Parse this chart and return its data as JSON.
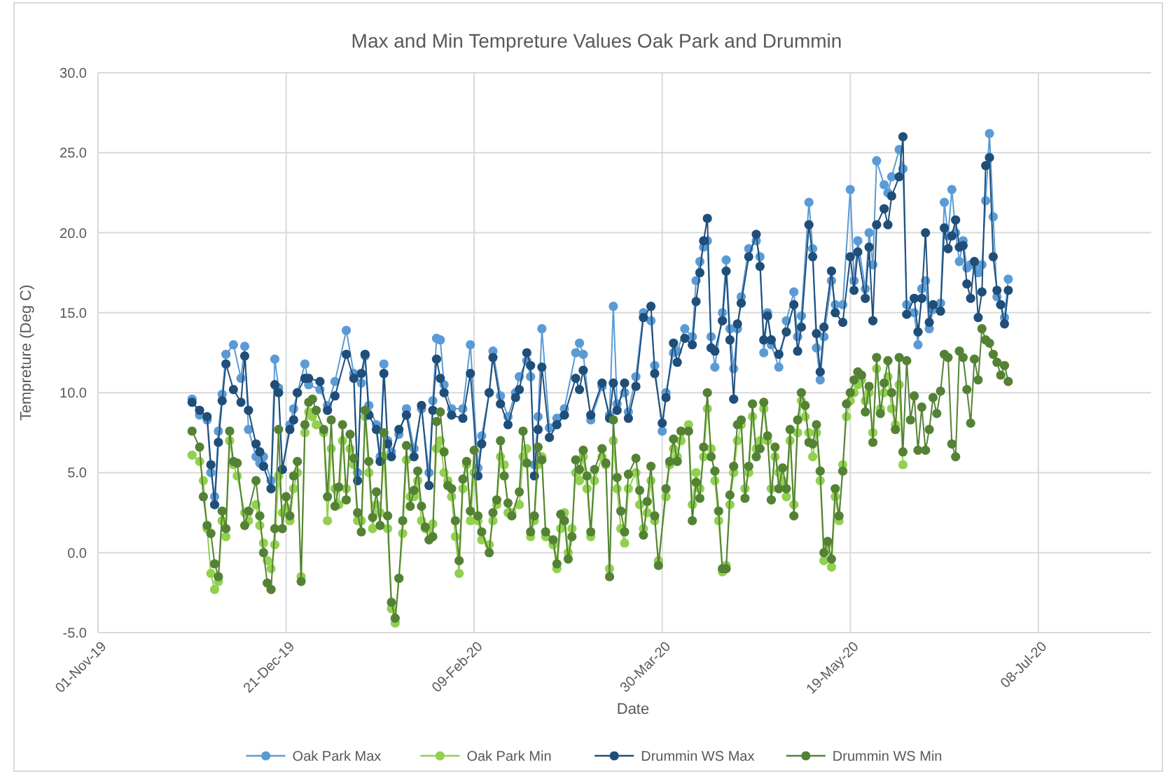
{
  "chart_data": {
    "type": "line",
    "title": "Max and Min Tempreture Values Oak Park and Drummin",
    "xlabel": "Date",
    "ylabel": "Tempreture (Deg C)",
    "xlim": [
      "2019-11-01",
      "2020-08-07"
    ],
    "xticks": [
      {
        "value": "2019-11-01",
        "label": "01-Nov-19"
      },
      {
        "value": "2019-12-21",
        "label": "21-Dec-19"
      },
      {
        "value": "2020-02-09",
        "label": "09-Feb-20"
      },
      {
        "value": "2020-03-30",
        "label": "30-Mar-20"
      },
      {
        "value": "2020-05-19",
        "label": "19-May-20"
      },
      {
        "value": "2020-07-08",
        "label": "08-Jul-20"
      }
    ],
    "ylim": [
      -5,
      30
    ],
    "yticks": [
      {
        "value": -5,
        "label": "-5.0"
      },
      {
        "value": 0,
        "label": "0.0"
      },
      {
        "value": 5,
        "label": "5.0"
      },
      {
        "value": 10,
        "label": "10.0"
      },
      {
        "value": 15,
        "label": "15.0"
      },
      {
        "value": 20,
        "label": "20.0"
      },
      {
        "value": 25,
        "label": "25.0"
      },
      {
        "value": 30,
        "label": "30.0"
      }
    ],
    "grid": true,
    "legend": "bottom",
    "marker": "circle",
    "line_style": "solid",
    "series": [
      {
        "name": "Oak Park Max",
        "color": "#5b9bd5",
        "x": [
          "2019-11-26",
          "2019-11-28",
          "2019-11-30",
          "2019-12-01",
          "2019-12-02",
          "2019-12-03",
          "2019-12-04",
          "2019-12-05",
          "2019-12-07",
          "2019-12-09",
          "2019-12-10",
          "2019-12-11",
          "2019-12-13",
          "2019-12-14",
          "2019-12-15",
          "2019-12-17",
          "2019-12-18",
          "2019-12-19",
          "2019-12-20",
          "2019-12-22",
          "2019-12-23",
          "2019-12-24",
          "2019-12-26",
          "2019-12-27",
          "2019-12-30",
          "2020-01-01",
          "2020-01-03",
          "2020-01-06",
          "2020-01-08",
          "2020-01-09",
          "2020-01-10",
          "2020-01-11",
          "2020-01-12",
          "2020-01-14",
          "2020-01-15",
          "2020-01-16",
          "2020-01-17",
          "2020-01-18",
          "2020-01-20",
          "2020-01-22",
          "2020-01-24",
          "2020-01-26",
          "2020-01-28",
          "2020-01-29",
          "2020-01-30",
          "2020-01-31",
          "2020-02-01",
          "2020-02-03",
          "2020-02-06",
          "2020-02-08",
          "2020-02-10",
          "2020-02-11",
          "2020-02-13",
          "2020-02-14",
          "2020-02-16",
          "2020-02-18",
          "2020-02-20",
          "2020-02-21",
          "2020-02-23",
          "2020-02-24",
          "2020-02-25",
          "2020-02-26",
          "2020-02-27",
          "2020-02-29",
          "2020-03-02",
          "2020-03-04",
          "2020-03-07",
          "2020-03-08",
          "2020-03-09",
          "2020-03-11",
          "2020-03-14",
          "2020-03-16",
          "2020-03-17",
          "2020-03-18",
          "2020-03-20",
          "2020-03-21",
          "2020-03-23",
          "2020-03-25",
          "2020-03-27",
          "2020-03-28",
          "2020-03-30",
          "2020-03-31",
          "2020-04-02",
          "2020-04-03",
          "2020-04-05",
          "2020-04-07",
          "2020-04-08",
          "2020-04-09",
          "2020-04-10",
          "2020-04-11",
          "2020-04-12",
          "2020-04-13",
          "2020-04-15",
          "2020-04-16",
          "2020-04-17",
          "2020-04-18",
          "2020-04-19",
          "2020-04-20",
          "2020-04-22",
          "2020-04-24",
          "2020-04-25",
          "2020-04-26",
          "2020-04-27",
          "2020-04-28",
          "2020-04-30",
          "2020-05-02",
          "2020-05-04",
          "2020-05-05",
          "2020-05-06",
          "2020-05-08",
          "2020-05-09",
          "2020-05-10",
          "2020-05-11",
          "2020-05-12",
          "2020-05-14",
          "2020-05-15",
          "2020-05-17",
          "2020-05-19",
          "2020-05-20",
          "2020-05-21",
          "2020-05-23",
          "2020-05-24",
          "2020-05-25",
          "2020-05-26",
          "2020-05-28",
          "2020-05-29",
          "2020-05-30",
          "2020-06-01",
          "2020-06-02",
          "2020-06-03",
          "2020-06-05",
          "2020-06-06",
          "2020-06-07",
          "2020-06-08",
          "2020-06-09",
          "2020-06-10",
          "2020-06-12",
          "2020-06-13",
          "2020-06-14",
          "2020-06-15",
          "2020-06-16",
          "2020-06-17",
          "2020-06-18",
          "2020-06-19",
          "2020-06-20",
          "2020-06-21",
          "2020-06-22",
          "2020-06-23",
          "2020-06-24",
          "2020-06-25",
          "2020-06-26",
          "2020-06-27",
          "2020-06-28",
          "2020-06-29",
          "2020-06-30"
        ],
        "values": [
          9.6,
          8.6,
          8.3,
          5.0,
          3.5,
          7.6,
          9.9,
          12.4,
          13.0,
          10.9,
          12.9,
          7.7,
          6.0,
          5.6,
          6.0,
          4.5,
          12.1,
          10.3,
          5.2,
          8.0,
          9.0,
          10.0,
          11.8,
          10.5,
          10.2,
          9.2,
          10.7,
          13.9,
          11.2,
          5.0,
          10.6,
          12.3,
          9.2,
          8.0,
          6.0,
          11.8,
          7.0,
          6.3,
          7.4,
          9.0,
          6.5,
          9.0,
          5.0,
          9.5,
          13.4,
          13.3,
          10.5,
          9.0,
          9.0,
          13.0,
          5.3,
          7.3,
          10.0,
          12.6,
          9.8,
          8.5,
          10.0,
          11.0,
          12.0,
          11.0,
          5.5,
          8.5,
          14.0,
          7.8,
          8.4,
          9.0,
          12.5,
          13.1,
          12.4,
          8.3,
          10.4,
          8.6,
          15.4,
          9.3,
          10.0,
          8.8,
          11.0,
          15.0,
          14.5,
          11.7,
          7.6,
          10.0,
          12.5,
          12.6,
          14.0,
          13.5,
          17.0,
          18.2,
          19.1,
          19.5,
          13.5,
          11.6,
          15.0,
          18.3,
          14.0,
          11.5,
          14.0,
          16.0,
          19.0,
          19.5,
          18.5,
          12.5,
          15.0,
          13.0,
          11.6,
          14.5,
          16.3,
          13.5,
          14.8,
          21.9,
          19.0,
          12.8,
          10.8,
          13.5,
          17.0,
          15.5,
          15.5,
          22.7,
          17.0,
          19.5,
          16.5,
          20.0,
          18.0,
          24.5,
          23.0,
          22.5,
          23.5,
          25.2,
          24.0,
          15.5,
          15.0,
          13.0,
          16.5,
          17.0,
          14.0,
          15.2,
          15.6,
          21.9,
          19.8,
          22.7,
          20.0,
          18.2,
          19.5,
          17.8,
          18.0,
          18.0,
          17.5,
          18.0,
          22.0,
          26.2,
          21.0,
          16.0,
          15.5,
          14.7,
          17.1
        ]
      },
      {
        "name": "Oak Park Min",
        "color": "#92d050",
        "x": [
          "2019-11-26",
          "2019-11-28",
          "2019-11-29",
          "2019-11-30",
          "2019-12-01",
          "2019-12-02",
          "2019-12-03",
          "2019-12-04",
          "2019-12-05",
          "2019-12-06",
          "2019-12-07",
          "2019-12-08",
          "2019-12-10",
          "2019-12-11",
          "2019-12-13",
          "2019-12-14",
          "2019-12-15",
          "2019-12-16",
          "2019-12-17",
          "2019-12-18",
          "2019-12-19",
          "2019-12-20",
          "2019-12-21",
          "2019-12-22",
          "2019-12-23",
          "2019-12-24",
          "2019-12-25",
          "2019-12-26",
          "2019-12-27",
          "2019-12-28",
          "2019-12-29",
          "2019-12-31",
          "2020-01-01",
          "2020-01-02",
          "2020-01-03",
          "2020-01-04",
          "2020-01-05",
          "2020-01-06",
          "2020-01-07",
          "2020-01-08",
          "2020-01-09",
          "2020-01-10",
          "2020-01-11",
          "2020-01-12",
          "2020-01-13",
          "2020-01-14",
          "2020-01-15",
          "2020-01-16",
          "2020-01-17",
          "2020-01-18",
          "2020-01-19",
          "2020-01-20",
          "2020-01-21",
          "2020-01-22",
          "2020-01-23",
          "2020-01-24",
          "2020-01-25",
          "2020-01-26",
          "2020-01-27",
          "2020-01-28",
          "2020-01-29",
          "2020-01-30",
          "2020-01-31",
          "2020-02-01",
          "2020-02-02",
          "2020-02-03",
          "2020-02-04",
          "2020-02-05",
          "2020-02-06",
          "2020-02-07",
          "2020-02-08",
          "2020-02-09",
          "2020-02-10",
          "2020-02-11",
          "2020-02-13",
          "2020-02-14",
          "2020-02-15",
          "2020-02-16",
          "2020-02-17",
          "2020-02-18",
          "2020-02-19",
          "2020-02-21",
          "2020-02-22",
          "2020-02-23",
          "2020-02-24",
          "2020-02-25",
          "2020-02-26",
          "2020-02-27",
          "2020-02-28",
          "2020-03-01",
          "2020-03-02",
          "2020-03-03",
          "2020-03-04",
          "2020-03-05",
          "2020-03-06",
          "2020-03-07",
          "2020-03-08",
          "2020-03-09",
          "2020-03-10",
          "2020-03-11",
          "2020-03-12",
          "2020-03-14",
          "2020-03-15",
          "2020-03-16",
          "2020-03-17",
          "2020-03-18",
          "2020-03-19",
          "2020-03-20",
          "2020-03-21",
          "2020-03-23",
          "2020-03-24",
          "2020-03-25",
          "2020-03-26",
          "2020-03-27",
          "2020-03-28",
          "2020-03-29",
          "2020-03-31",
          "2020-04-01",
          "2020-04-02",
          "2020-04-03",
          "2020-04-04",
          "2020-04-06",
          "2020-04-07",
          "2020-04-08",
          "2020-04-09",
          "2020-04-10",
          "2020-04-11",
          "2020-04-12",
          "2020-04-13",
          "2020-04-14",
          "2020-04-15",
          "2020-04-16",
          "2020-04-17",
          "2020-04-18",
          "2020-04-19",
          "2020-04-20",
          "2020-04-21",
          "2020-04-22",
          "2020-04-23",
          "2020-04-24",
          "2020-04-25",
          "2020-04-26",
          "2020-04-27",
          "2020-04-28",
          "2020-04-29",
          "2020-04-30",
          "2020-05-01",
          "2020-05-02",
          "2020-05-03",
          "2020-05-04",
          "2020-05-05",
          "2020-05-06",
          "2020-05-07",
          "2020-05-08",
          "2020-05-09",
          "2020-05-10",
          "2020-05-11",
          "2020-05-12",
          "2020-05-13",
          "2020-05-14",
          "2020-05-15",
          "2020-05-16",
          "2020-05-17",
          "2020-05-18",
          "2020-05-19",
          "2020-05-20",
          "2020-05-21",
          "2020-05-22",
          "2020-05-23",
          "2020-05-24",
          "2020-05-25",
          "2020-05-26",
          "2020-05-27",
          "2020-05-28",
          "2020-05-29",
          "2020-05-30",
          "2020-05-31",
          "2020-06-01",
          "2020-06-02"
        ],
        "values": [
          6.1,
          5.7,
          4.5,
          1.5,
          -1.3,
          -2.3,
          -1.8,
          2.0,
          1.0,
          7.0,
          5.5,
          4.8,
          2.5,
          2.0,
          3.0,
          1.7,
          0.6,
          -0.5,
          -1.0,
          0.5,
          4.8,
          2.5,
          2.8,
          2.0,
          4.0,
          5.0,
          -1.5,
          7.5,
          8.8,
          8.5,
          8.0,
          7.5,
          2.0,
          6.5,
          4.0,
          3.0,
          7.0,
          4.0,
          6.5,
          5.5,
          2.0,
          2.0,
          8.5,
          5.0,
          1.5,
          3.0,
          2.5,
          6.0,
          1.5,
          -3.5,
          -4.4,
          -1.6,
          1.2,
          5.8,
          3.5,
          3.5,
          4.5,
          2.0,
          1.5,
          1.5,
          1.8,
          6.5,
          7.0,
          5.0,
          4.5,
          3.5,
          1.0,
          -1.3,
          4.0,
          5.5,
          2.0,
          5.0,
          2.0,
          0.8,
          0.5,
          2.0,
          3.0,
          6.0,
          5.5,
          2.5,
          2.5,
          3.0,
          6.0,
          6.5,
          1.0,
          2.0,
          5.5,
          6.0,
          1.0,
          0.5,
          -1.0,
          1.5,
          2.5,
          0.0,
          1.5,
          5.0,
          4.5,
          6.0,
          4.0,
          1.0,
          4.5,
          6.0,
          5.5,
          -1.0,
          7.0,
          4.0,
          1.5,
          0.6,
          4.0,
          5.0,
          3.0,
          1.5,
          2.5,
          4.5,
          2.0,
          -0.5,
          3.5,
          5.5,
          6.5,
          6.0,
          7.0,
          8.0,
          3.0,
          5.0,
          4.0,
          6.0,
          9.0,
          6.5,
          4.5,
          2.0,
          -1.2,
          -0.8,
          3.0,
          5.0,
          7.0,
          8.0,
          4.0,
          5.0,
          8.5,
          6.5,
          7.0,
          9.0,
          7.0,
          4.0,
          6.0,
          5.0,
          4.5,
          3.5,
          7.0,
          3.0,
          7.5,
          9.5,
          8.5,
          7.5,
          6.0,
          7.5,
          4.5,
          -0.5,
          0.5,
          -0.9,
          3.5,
          2.0,
          5.5,
          8.5,
          9.5,
          10.0,
          10.5,
          10.8,
          9.5,
          10.0,
          7.5,
          11.5,
          9.0,
          10.0,
          11.0,
          9.0,
          8.0,
          10.5,
          5.5
        ]
      },
      {
        "name": "Drummin WS Max",
        "color": "#1f4e79",
        "x": [
          "2019-11-26",
          "2019-11-28",
          "2019-11-30",
          "2019-12-01",
          "2019-12-02",
          "2019-12-03",
          "2019-12-04",
          "2019-12-05",
          "2019-12-07",
          "2019-12-09",
          "2019-12-10",
          "2019-12-11",
          "2019-12-13",
          "2019-12-14",
          "2019-12-15",
          "2019-12-17",
          "2019-12-18",
          "2019-12-19",
          "2019-12-20",
          "2019-12-22",
          "2019-12-23",
          "2019-12-24",
          "2019-12-26",
          "2019-12-27",
          "2019-12-30",
          "2020-01-01",
          "2020-01-03",
          "2020-01-06",
          "2020-01-08",
          "2020-01-09",
          "2020-01-10",
          "2020-01-11",
          "2020-01-12",
          "2020-01-14",
          "2020-01-15",
          "2020-01-16",
          "2020-01-17",
          "2020-01-18",
          "2020-01-20",
          "2020-01-22",
          "2020-01-24",
          "2020-01-26",
          "2020-01-28",
          "2020-01-29",
          "2020-01-30",
          "2020-01-31",
          "2020-02-01",
          "2020-02-03",
          "2020-02-06",
          "2020-02-08",
          "2020-02-10",
          "2020-02-11",
          "2020-02-13",
          "2020-02-14",
          "2020-02-16",
          "2020-02-18",
          "2020-02-20",
          "2020-02-21",
          "2020-02-23",
          "2020-02-24",
          "2020-02-25",
          "2020-02-26",
          "2020-02-27",
          "2020-02-29",
          "2020-03-02",
          "2020-03-04",
          "2020-03-07",
          "2020-03-08",
          "2020-03-09",
          "2020-03-11",
          "2020-03-14",
          "2020-03-16",
          "2020-03-17",
          "2020-03-18",
          "2020-03-20",
          "2020-03-21",
          "2020-03-23",
          "2020-03-25",
          "2020-03-27",
          "2020-03-28",
          "2020-03-30",
          "2020-03-31",
          "2020-04-02",
          "2020-04-03",
          "2020-04-05",
          "2020-04-07",
          "2020-04-08",
          "2020-04-09",
          "2020-04-10",
          "2020-04-11",
          "2020-04-12",
          "2020-04-13",
          "2020-04-15",
          "2020-04-16",
          "2020-04-17",
          "2020-04-18",
          "2020-04-19",
          "2020-04-20",
          "2020-04-22",
          "2020-04-24",
          "2020-04-25",
          "2020-04-26",
          "2020-04-27",
          "2020-04-28",
          "2020-04-30",
          "2020-05-02",
          "2020-05-04",
          "2020-05-05",
          "2020-05-06",
          "2020-05-08",
          "2020-05-09",
          "2020-05-10",
          "2020-05-11",
          "2020-05-12",
          "2020-05-14",
          "2020-05-15",
          "2020-05-17",
          "2020-05-19",
          "2020-05-20",
          "2020-05-21",
          "2020-05-23",
          "2020-05-24",
          "2020-05-25",
          "2020-05-26",
          "2020-05-28",
          "2020-05-29",
          "2020-05-30",
          "2020-06-01",
          "2020-06-02",
          "2020-06-03",
          "2020-06-05",
          "2020-06-06",
          "2020-06-07",
          "2020-06-08",
          "2020-06-09",
          "2020-06-10",
          "2020-06-12",
          "2020-06-13",
          "2020-06-14",
          "2020-06-15",
          "2020-06-16",
          "2020-06-17",
          "2020-06-18",
          "2020-06-19",
          "2020-06-20",
          "2020-06-21",
          "2020-06-22",
          "2020-06-23",
          "2020-06-24",
          "2020-06-25",
          "2020-06-26",
          "2020-06-27",
          "2020-06-28",
          "2020-06-29",
          "2020-06-30"
        ],
        "values": [
          9.4,
          8.9,
          8.5,
          5.5,
          3.0,
          6.9,
          9.5,
          11.8,
          10.2,
          9.4,
          12.3,
          8.9,
          6.8,
          6.3,
          5.4,
          4.0,
          10.5,
          10.0,
          5.2,
          7.7,
          8.3,
          10.0,
          10.9,
          10.9,
          10.7,
          8.9,
          9.8,
          12.4,
          10.9,
          4.5,
          11.2,
          12.4,
          8.6,
          7.7,
          5.7,
          11.2,
          6.8,
          6.0,
          7.7,
          8.6,
          6.0,
          9.2,
          4.2,
          8.9,
          12.1,
          10.9,
          10.0,
          8.6,
          8.4,
          11.2,
          4.8,
          6.8,
          10.0,
          12.2,
          9.3,
          8.0,
          9.7,
          10.2,
          12.5,
          11.7,
          4.8,
          7.7,
          11.6,
          7.2,
          8.0,
          8.6,
          10.9,
          10.2,
          11.4,
          8.6,
          10.6,
          8.4,
          10.6,
          8.9,
          10.6,
          8.4,
          10.4,
          14.7,
          15.4,
          11.2,
          8.1,
          9.7,
          13.1,
          11.9,
          13.4,
          13.0,
          15.7,
          17.5,
          19.5,
          20.9,
          12.8,
          12.6,
          14.5,
          17.6,
          13.3,
          9.6,
          14.3,
          15.6,
          18.5,
          19.9,
          17.9,
          13.3,
          14.8,
          13.3,
          12.4,
          13.8,
          15.5,
          12.6,
          14.1,
          20.5,
          18.5,
          13.7,
          11.3,
          14.1,
          17.6,
          15.0,
          14.4,
          18.5,
          16.4,
          18.8,
          15.9,
          19.1,
          14.5,
          20.5,
          21.5,
          20.5,
          22.3,
          23.5,
          26.0,
          14.9,
          15.9,
          13.8,
          15.9,
          20.0,
          14.4,
          15.5,
          15.1,
          20.3,
          19.0,
          19.8,
          20.8,
          19.1,
          19.2,
          16.8,
          15.9,
          18.2,
          14.7,
          16.3,
          24.2,
          24.7,
          18.5,
          16.4,
          15.5,
          14.3,
          16.4
        ]
      },
      {
        "name": "Drummin WS Min",
        "color": "#548235",
        "x": [
          "2019-11-26",
          "2019-11-28",
          "2019-11-29",
          "2019-11-30",
          "2019-12-01",
          "2019-12-02",
          "2019-12-03",
          "2019-12-04",
          "2019-12-05",
          "2019-12-06",
          "2019-12-07",
          "2019-12-08",
          "2019-12-10",
          "2019-12-11",
          "2019-12-13",
          "2019-12-14",
          "2019-12-15",
          "2019-12-16",
          "2019-12-17",
          "2019-12-18",
          "2019-12-19",
          "2019-12-20",
          "2019-12-21",
          "2019-12-22",
          "2019-12-23",
          "2019-12-24",
          "2019-12-25",
          "2019-12-26",
          "2019-12-27",
          "2019-12-28",
          "2019-12-29",
          "2019-12-31",
          "2020-01-01",
          "2020-01-02",
          "2020-01-03",
          "2020-01-04",
          "2020-01-05",
          "2020-01-06",
          "2020-01-07",
          "2020-01-08",
          "2020-01-09",
          "2020-01-10",
          "2020-01-11",
          "2020-01-12",
          "2020-01-13",
          "2020-01-14",
          "2020-01-15",
          "2020-01-16",
          "2020-01-17",
          "2020-01-18",
          "2020-01-19",
          "2020-01-20",
          "2020-01-21",
          "2020-01-22",
          "2020-01-23",
          "2020-01-24",
          "2020-01-25",
          "2020-01-26",
          "2020-01-27",
          "2020-01-28",
          "2020-01-29",
          "2020-01-30",
          "2020-01-31",
          "2020-02-01",
          "2020-02-02",
          "2020-02-03",
          "2020-02-04",
          "2020-02-05",
          "2020-02-06",
          "2020-02-07",
          "2020-02-08",
          "2020-02-09",
          "2020-02-10",
          "2020-02-11",
          "2020-02-13",
          "2020-02-14",
          "2020-02-15",
          "2020-02-16",
          "2020-02-17",
          "2020-02-18",
          "2020-02-19",
          "2020-02-21",
          "2020-02-22",
          "2020-02-23",
          "2020-02-24",
          "2020-02-25",
          "2020-02-26",
          "2020-02-27",
          "2020-02-28",
          "2020-03-01",
          "2020-03-02",
          "2020-03-03",
          "2020-03-04",
          "2020-03-05",
          "2020-03-06",
          "2020-03-07",
          "2020-03-08",
          "2020-03-09",
          "2020-03-10",
          "2020-03-11",
          "2020-03-12",
          "2020-03-14",
          "2020-03-15",
          "2020-03-16",
          "2020-03-17",
          "2020-03-18",
          "2020-03-19",
          "2020-03-20",
          "2020-03-21",
          "2020-03-23",
          "2020-03-24",
          "2020-03-25",
          "2020-03-26",
          "2020-03-27",
          "2020-03-28",
          "2020-03-29",
          "2020-03-31",
          "2020-04-01",
          "2020-04-02",
          "2020-04-03",
          "2020-04-04",
          "2020-04-06",
          "2020-04-07",
          "2020-04-08",
          "2020-04-09",
          "2020-04-10",
          "2020-04-11",
          "2020-04-12",
          "2020-04-13",
          "2020-04-14",
          "2020-04-15",
          "2020-04-16",
          "2020-04-17",
          "2020-04-18",
          "2020-04-19",
          "2020-04-20",
          "2020-04-21",
          "2020-04-22",
          "2020-04-23",
          "2020-04-24",
          "2020-04-25",
          "2020-04-26",
          "2020-04-27",
          "2020-04-28",
          "2020-04-29",
          "2020-04-30",
          "2020-05-01",
          "2020-05-02",
          "2020-05-03",
          "2020-05-04",
          "2020-05-05",
          "2020-05-06",
          "2020-05-07",
          "2020-05-08",
          "2020-05-09",
          "2020-05-10",
          "2020-05-11",
          "2020-05-12",
          "2020-05-13",
          "2020-05-14",
          "2020-05-15",
          "2020-05-16",
          "2020-05-17",
          "2020-05-18",
          "2020-05-19",
          "2020-05-20",
          "2020-05-21",
          "2020-05-22",
          "2020-05-23",
          "2020-05-24",
          "2020-05-25",
          "2020-05-26",
          "2020-05-27",
          "2020-05-28",
          "2020-05-29",
          "2020-05-30",
          "2020-05-31",
          "2020-06-01",
          "2020-06-02",
          "2020-06-03",
          "2020-06-04",
          "2020-06-05",
          "2020-06-06",
          "2020-06-07",
          "2020-06-08",
          "2020-06-09",
          "2020-06-10",
          "2020-06-11",
          "2020-06-12",
          "2020-06-13",
          "2020-06-14",
          "2020-06-15",
          "2020-06-16",
          "2020-06-17",
          "2020-06-18",
          "2020-06-19",
          "2020-06-20",
          "2020-06-21",
          "2020-06-22",
          "2020-06-23",
          "2020-06-24",
          "2020-06-25",
          "2020-06-26",
          "2020-06-27",
          "2020-06-28",
          "2020-06-29",
          "2020-06-30"
        ],
        "values": [
          7.6,
          6.6,
          3.5,
          1.7,
          1.2,
          -0.7,
          -1.5,
          2.6,
          1.5,
          7.6,
          5.7,
          5.6,
          1.7,
          2.6,
          4.5,
          2.3,
          0.0,
          -1.9,
          -2.3,
          1.5,
          7.7,
          1.5,
          3.5,
          2.3,
          4.8,
          5.7,
          -1.8,
          8.0,
          9.4,
          9.6,
          8.9,
          7.7,
          3.5,
          8.3,
          2.9,
          4.1,
          8.0,
          3.3,
          7.4,
          5.9,
          2.5,
          1.3,
          8.9,
          5.7,
          2.2,
          3.8,
          1.7,
          7.5,
          2.3,
          -3.1,
          -4.1,
          -1.6,
          2.0,
          6.7,
          2.9,
          3.9,
          5.1,
          2.9,
          1.6,
          0.8,
          1.0,
          8.2,
          8.8,
          6.3,
          4.2,
          4.0,
          2.0,
          -0.5,
          4.6,
          5.7,
          2.6,
          6.4,
          2.3,
          1.3,
          0.0,
          2.5,
          3.3,
          7.0,
          4.8,
          3.1,
          2.3,
          3.8,
          7.6,
          5.6,
          1.3,
          2.3,
          6.6,
          5.8,
          1.3,
          0.8,
          -0.7,
          2.4,
          2.0,
          -0.4,
          1.0,
          5.8,
          5.2,
          6.4,
          4.8,
          1.3,
          5.2,
          6.5,
          5.6,
          -1.5,
          8.3,
          4.7,
          2.6,
          1.3,
          4.9,
          5.9,
          3.9,
          1.1,
          3.2,
          5.4,
          2.3,
          -0.8,
          4.0,
          5.7,
          7.1,
          5.7,
          7.6,
          7.6,
          2.0,
          4.4,
          3.4,
          6.6,
          10.0,
          6.0,
          5.1,
          2.6,
          -1.0,
          -1.0,
          3.6,
          5.4,
          8.0,
          8.3,
          3.4,
          5.4,
          9.3,
          6.0,
          6.5,
          9.4,
          7.3,
          3.3,
          6.6,
          4.0,
          5.3,
          4.0,
          7.7,
          2.3,
          8.3,
          10.0,
          9.2,
          6.9,
          6.8,
          8.0,
          5.1,
          0.0,
          0.7,
          -0.4,
          4.0,
          2.3,
          5.1,
          9.3,
          10.0,
          10.8,
          11.3,
          11.1,
          8.8,
          10.4,
          6.9,
          12.2,
          8.7,
          10.6,
          12.0,
          10.0,
          7.7,
          12.2,
          6.3,
          12.0,
          8.3,
          9.8,
          6.4,
          9.1,
          6.4,
          7.7,
          9.7,
          8.7,
          10.1,
          12.4,
          12.2,
          6.8,
          6.0,
          12.6,
          12.2,
          10.2,
          8.1,
          12.1,
          10.8,
          14.0,
          13.3,
          13.1,
          12.4,
          11.9,
          11.1,
          11.7,
          10.7
        ]
      }
    ]
  }
}
